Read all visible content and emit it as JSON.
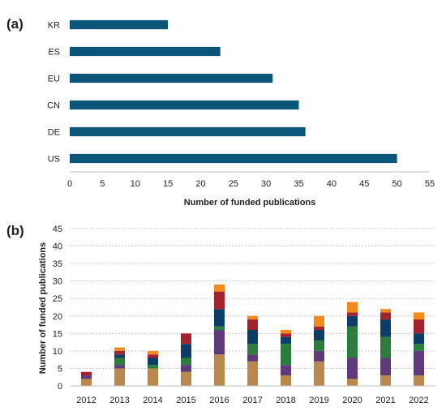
{
  "colors": {
    "bar_a": "#0b5678",
    "axis": "#bfbfbf",
    "grid": "#c8c8c8"
  },
  "chart_data": [
    {
      "panel_label": "(a)",
      "type": "bar",
      "orientation": "horizontal",
      "categories": [
        "KR",
        "ES",
        "EU",
        "CN",
        "DE",
        "US"
      ],
      "values": [
        15,
        23,
        31,
        35,
        36,
        50
      ],
      "xlabel": "Number of funded publications",
      "ylabel": "",
      "xlim": [
        0,
        55
      ],
      "x_ticks": [
        "0",
        "5",
        "10",
        "15",
        "20",
        "25",
        "30",
        "35",
        "40",
        "45",
        "50",
        "55"
      ],
      "grid": false,
      "legend": "none"
    },
    {
      "panel_label": "(b)",
      "type": "bar",
      "stacked": true,
      "categories": [
        "2012",
        "2013",
        "2014",
        "2015",
        "2016",
        "2017",
        "2018",
        "2019",
        "2020",
        "2021",
        "2022"
      ],
      "series": [
        {
          "color": "#b8884e",
          "values": [
            2,
            5,
            5,
            4,
            9,
            7,
            3,
            7,
            2,
            3,
            3
          ]
        },
        {
          "color": "#5f3a7a",
          "values": [
            1,
            1,
            0,
            2,
            7,
            2,
            3,
            3,
            6,
            5,
            7
          ]
        },
        {
          "color": "#2a7d3a",
          "values": [
            0,
            2,
            1,
            2,
            1,
            3,
            6,
            3,
            9,
            6,
            2
          ]
        },
        {
          "color": "#0c3d66",
          "values": [
            0,
            1,
            2,
            4,
            5,
            4,
            2,
            3,
            3,
            5,
            3
          ]
        },
        {
          "color": "#a3222e",
          "values": [
            1,
            1,
            1,
            3,
            5,
            3,
            1,
            1,
            1,
            2,
            4
          ]
        },
        {
          "color": "#f28a1c",
          "values": [
            0,
            1,
            1,
            0,
            2,
            1,
            1,
            3,
            3,
            1,
            2
          ]
        }
      ],
      "xlabel": "",
      "ylabel": "Number of funded publications",
      "ylim": [
        0,
        45
      ],
      "y_ticks": [
        "0",
        "5",
        "10",
        "15",
        "20",
        "25",
        "30",
        "35",
        "40",
        "45"
      ],
      "grid": true,
      "legend": "none"
    }
  ]
}
